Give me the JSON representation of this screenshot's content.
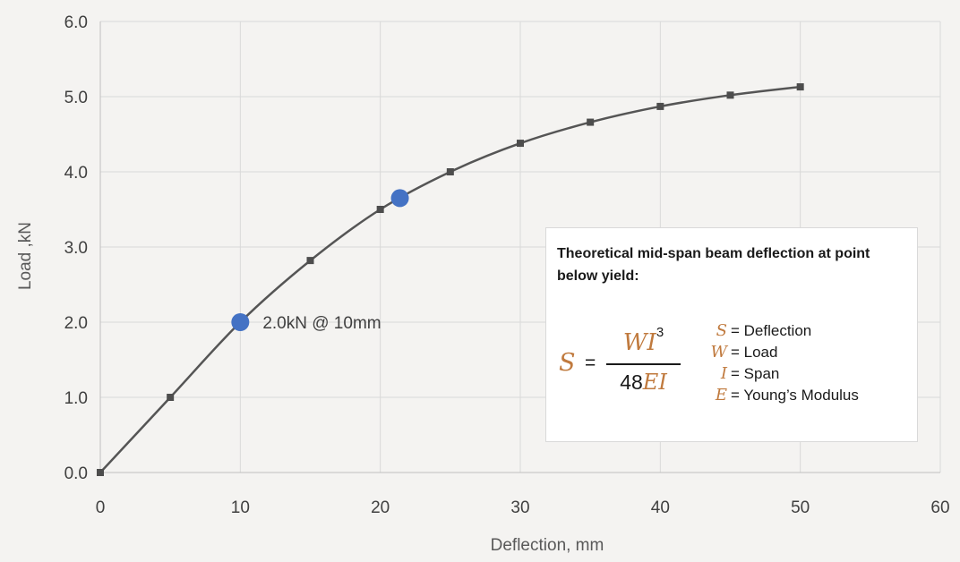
{
  "chart_data": {
    "type": "line",
    "title": "",
    "xlabel": "Deflection, mm",
    "ylabel": "Load ,kN",
    "xlim": [
      0,
      60
    ],
    "ylim": [
      0,
      6
    ],
    "xticks": [
      0,
      10,
      20,
      30,
      40,
      50,
      60
    ],
    "yticks": [
      0,
      1,
      2,
      3,
      4,
      5,
      6
    ],
    "xtick_labels": [
      "0",
      "10",
      "20",
      "30",
      "40",
      "50",
      "60"
    ],
    "ytick_labels": [
      "0.0",
      "1.0",
      "2.0",
      "3.0",
      "4.0",
      "5.0",
      "6.0"
    ],
    "grid": true,
    "series": [
      {
        "x": [
          0,
          5,
          10,
          15,
          20,
          25,
          30,
          35,
          40,
          45,
          50
        ],
        "y": [
          0,
          1.0,
          2.0,
          2.82,
          3.5,
          4.0,
          4.38,
          4.66,
          4.87,
          5.02,
          5.13
        ],
        "color": "#555555",
        "marker": "square"
      }
    ],
    "highlight_points": [
      {
        "x": 10,
        "y": 2.0,
        "label": "2.0kN @ 10mm",
        "color": "#4472c4"
      },
      {
        "x": 21.4,
        "y": 3.65,
        "label": "",
        "color": "#4472c4"
      }
    ],
    "annotation_box": {
      "title": "Theoretical mid-span beam deflection at point below yield:",
      "formula": {
        "lhs": "S",
        "equals": "=",
        "numerator_vars": "WI",
        "numerator_exponent": "3",
        "denominator_coefficient": "48",
        "denominator_vars": "EI"
      },
      "legend": [
        {
          "symbol": "S",
          "text": "= Deflection"
        },
        {
          "symbol": "W",
          "text": "= Load"
        },
        {
          "symbol": "I",
          "text": "= Span"
        },
        {
          "symbol": "E",
          "text": "= Young’s Modulus"
        }
      ],
      "variable_color": "#c07a3e"
    }
  }
}
